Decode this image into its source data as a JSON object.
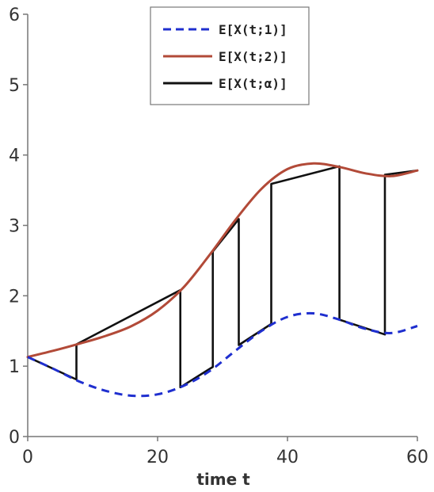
{
  "chart_data": {
    "type": "line",
    "xlabel": "time t",
    "ylabel": "",
    "xlim": [
      0,
      60
    ],
    "ylim": [
      0,
      6
    ],
    "x_ticks": [
      "0",
      "20",
      "40",
      "60"
    ],
    "y_ticks": [
      "0",
      "1",
      "2",
      "3",
      "4",
      "5",
      "6"
    ],
    "grid": false,
    "legend_position": "top-right",
    "series": [
      {
        "name": "E[X(t;1)]",
        "color": "#1f2fcf",
        "style": "dashed",
        "x": [
          0,
          4,
          8,
          12,
          16,
          20,
          24,
          28,
          32,
          36,
          40,
          44,
          48,
          52,
          56,
          60
        ],
        "y": [
          1.13,
          0.96,
          0.78,
          0.65,
          0.58,
          0.6,
          0.72,
          0.93,
          1.22,
          1.5,
          1.7,
          1.75,
          1.66,
          1.53,
          1.47,
          1.57
        ]
      },
      {
        "name": "E[X(t;2)]",
        "color": "#b24a38",
        "style": "solid",
        "x": [
          0,
          4,
          8,
          12,
          16,
          20,
          24,
          28,
          32,
          36,
          40,
          44,
          48,
          52,
          56,
          60
        ],
        "y": [
          1.13,
          1.22,
          1.32,
          1.43,
          1.57,
          1.79,
          2.12,
          2.58,
          3.08,
          3.52,
          3.8,
          3.88,
          3.83,
          3.74,
          3.7,
          3.78
        ]
      },
      {
        "name": "E[X(t;α)]",
        "color": "#111111",
        "style": "solid",
        "x": [
          0,
          7.5,
          7.5,
          23.5,
          23.5,
          28.5,
          28.5,
          32.5,
          32.5,
          37.5,
          37.5,
          48,
          48,
          55,
          55,
          60
        ],
        "y": [
          1.13,
          0.81,
          1.31,
          2.08,
          0.7,
          0.99,
          2.63,
          3.09,
          1.3,
          1.6,
          3.59,
          3.84,
          1.66,
          1.45,
          3.72,
          3.78
        ]
      }
    ]
  }
}
